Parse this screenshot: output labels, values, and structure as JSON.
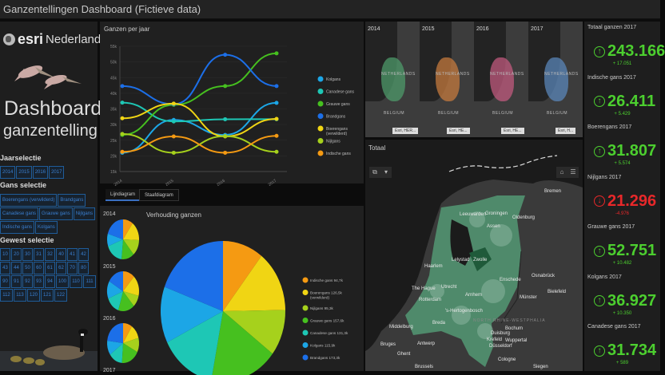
{
  "window": {
    "title": "Ganzentellingen Dashboard (Fictieve data)"
  },
  "sidebar": {
    "brand": "esri",
    "brand_suffix": "Nederland",
    "title": "Dashboard",
    "subtitle": "ganzentelling",
    "year_heading": "Jaarselectie",
    "years": [
      "2014",
      "2015",
      "2016",
      "2017"
    ],
    "species_heading": "Gans selectie",
    "species": [
      "Boerengans (verwilderd)",
      "Brandgans",
      "Canadese gans",
      "Grauwe gans",
      "Nijlgans",
      "Indische gans",
      "Kolgans"
    ],
    "region_heading": "Gewest selectie",
    "regions": [
      "10",
      "20",
      "30",
      "31",
      "32",
      "40",
      "41",
      "42",
      "43",
      "44",
      "50",
      "60",
      "61",
      "62",
      "70",
      "80",
      "90",
      "91",
      "92",
      "93",
      "94",
      "100",
      "110",
      "111",
      "112",
      "113",
      "120",
      "121",
      "122"
    ]
  },
  "line_panel": {
    "title": "Ganzen per jaar",
    "tabs": [
      {
        "label": "Lijndiagram",
        "active": true
      },
      {
        "label": "Staafdiagram",
        "active": false
      }
    ]
  },
  "pie_panel": {
    "title": "Verhouding ganzen",
    "small_years": [
      "2014",
      "2015",
      "2016",
      "2017"
    ],
    "legend": [
      {
        "label": "Indische gans 94,7k",
        "color": "#f59a12"
      },
      {
        "label": "Boerengans 126,5k",
        "label2": "(verwilderd)",
        "color": "#f0d514"
      },
      {
        "label": "Nijlgans 95,3k",
        "color": "#a6d11c"
      },
      {
        "label": "Grauwe gans 157,6k",
        "color": "#46c01f"
      },
      {
        "label": "Canadese gans 131,3k",
        "color": "#1ec7b5"
      },
      {
        "label": "Kolgans 115,9k",
        "color": "#1ca6e6"
      },
      {
        "label": "Brandgans 173,3k",
        "color": "#1c6fe8"
      }
    ]
  },
  "chart_data": [
    {
      "type": "line",
      "title": "Ganzen per jaar",
      "categories": [
        "2014",
        "2015",
        "2016",
        "2017"
      ],
      "xlabel": "",
      "ylabel": "",
      "ylim": [
        15000,
        55000
      ],
      "yticks": [
        "15k",
        "20k",
        "25k",
        "30k",
        "35k",
        "40k",
        "45k",
        "50k",
        "55k"
      ],
      "legend_position": "right",
      "series": [
        {
          "name": "Kolgans",
          "color": "#1ca6e6",
          "values": [
            21000,
            31500,
            26700,
            36927
          ]
        },
        {
          "name": "Canadese gans",
          "color": "#1ec7b5",
          "values": [
            37000,
            31000,
            31700,
            31734
          ]
        },
        {
          "name": "Grauwe gans",
          "color": "#46c01f",
          "values": [
            26700,
            36300,
            42300,
            52751
          ]
        },
        {
          "name": "Brandgans",
          "color": "#1c6fe8",
          "values": [
            42300,
            36500,
            52300,
            42300
          ]
        },
        {
          "name": "Boerengans (verwilderd)",
          "color": "#f0d514",
          "values": [
            32000,
            36700,
            26200,
            31807
          ]
        },
        {
          "name": "Nijlgans",
          "color": "#a6d11c",
          "values": [
            27000,
            21000,
            26300,
            21296
          ]
        },
        {
          "name": "Indische gans",
          "color": "#f59a12",
          "values": [
            21300,
            26200,
            21000,
            26411
          ]
        }
      ]
    },
    {
      "type": "pie",
      "title": "Verhouding ganzen",
      "categories": [
        "Indische gans",
        "Boerengans (verwilderd)",
        "Nijlgans",
        "Grauwe gans",
        "Canadese gans",
        "Kolgans",
        "Brandgans"
      ],
      "values": [
        94700,
        126500,
        95300,
        157600,
        131300,
        115900,
        173300
      ],
      "colors": [
        "#f59a12",
        "#f0d514",
        "#a6d11c",
        "#46c01f",
        "#1ec7b5",
        "#1ca6e6",
        "#1c6fe8"
      ],
      "legend_position": "right"
    }
  ],
  "minimaps": [
    {
      "year": "2014",
      "color": "#4e9a6a",
      "attribution": "Esri, HER..."
    },
    {
      "year": "2015",
      "color": "#c47a3e",
      "attribution": "Esri, HE..."
    },
    {
      "year": "2016",
      "color": "#c05a7e",
      "attribution": "Esri, HE..."
    },
    {
      "year": "2017",
      "color": "#5a86b8",
      "attribution": "Esri, H..."
    }
  ],
  "minimap_labels": {
    "country": "NETHERLANDS",
    "neighbor": "BELGIUM"
  },
  "main_map": {
    "title": "Totaal",
    "cities": [
      {
        "name": "Bremen",
        "x": 254,
        "y": 66
      },
      {
        "name": "Oldenburg",
        "x": 214,
        "y": 99
      },
      {
        "name": "Leeuwarden",
        "x": 148,
        "y": 95
      },
      {
        "name": "Groningen",
        "x": 180,
        "y": 94
      },
      {
        "name": "Assen",
        "x": 182,
        "y": 110
      },
      {
        "name": "Zwolle",
        "x": 165,
        "y": 152
      },
      {
        "name": "Lelystad",
        "x": 138,
        "y": 152
      },
      {
        "name": "Haarlem",
        "x": 104,
        "y": 160
      },
      {
        "name": "Enschede",
        "x": 198,
        "y": 177
      },
      {
        "name": "Osnabrück",
        "x": 238,
        "y": 172
      },
      {
        "name": "The Hague",
        "x": 88,
        "y": 188
      },
      {
        "name": "Utrecht",
        "x": 125,
        "y": 186
      },
      {
        "name": "Bielefeld",
        "x": 258,
        "y": 192
      },
      {
        "name": "Arnhem",
        "x": 155,
        "y": 196
      },
      {
        "name": "Münster",
        "x": 223,
        "y": 199
      },
      {
        "name": "Rotterdam",
        "x": 97,
        "y": 202
      },
      {
        "name": "'s-Hertogenbosch",
        "x": 130,
        "y": 216
      },
      {
        "name": "Breda",
        "x": 114,
        "y": 231
      },
      {
        "name": "Middelburg",
        "x": 60,
        "y": 236
      },
      {
        "name": "Bochum",
        "x": 205,
        "y": 238
      },
      {
        "name": "Duisburg",
        "x": 187,
        "y": 244
      },
      {
        "name": "Krefeld",
        "x": 182,
        "y": 252
      },
      {
        "name": "Wuppertal",
        "x": 205,
        "y": 253
      },
      {
        "name": "Düsseldorf",
        "x": 185,
        "y": 260
      },
      {
        "name": "Bruges",
        "x": 49,
        "y": 258
      },
      {
        "name": "Antwerp",
        "x": 95,
        "y": 257
      },
      {
        "name": "Ghent",
        "x": 70,
        "y": 270
      },
      {
        "name": "Cologne",
        "x": 196,
        "y": 277
      },
      {
        "name": "Brussels",
        "x": 92,
        "y": 286
      },
      {
        "name": "Siegen",
        "x": 240,
        "y": 286
      }
    ],
    "region_label": "NORTH RHINE-WESTPHALIA"
  },
  "kpis": [
    {
      "title": "Totaal ganzen 2017",
      "value": "243.166",
      "delta": "+ 17.051",
      "trend": "up"
    },
    {
      "title": "Indische gans 2017",
      "value": "26.411",
      "delta": "+ 5.429",
      "trend": "up"
    },
    {
      "title": "Boerengans 2017",
      "value": "31.807",
      "delta": "+ 5.574",
      "trend": "up"
    },
    {
      "title": "Nijlgans 2017",
      "value": "21.296",
      "delta": "-4.976",
      "trend": "down"
    },
    {
      "title": "Grauwe gans 2017",
      "value": "52.751",
      "delta": "+ 10.482",
      "trend": "up"
    },
    {
      "title": "Kolgans 2017",
      "value": "36.927",
      "delta": "+ 10.350",
      "trend": "up"
    },
    {
      "title": "Canadese gans 2017",
      "value": "31.734",
      "delta": "+ 589",
      "trend": "up"
    }
  ]
}
